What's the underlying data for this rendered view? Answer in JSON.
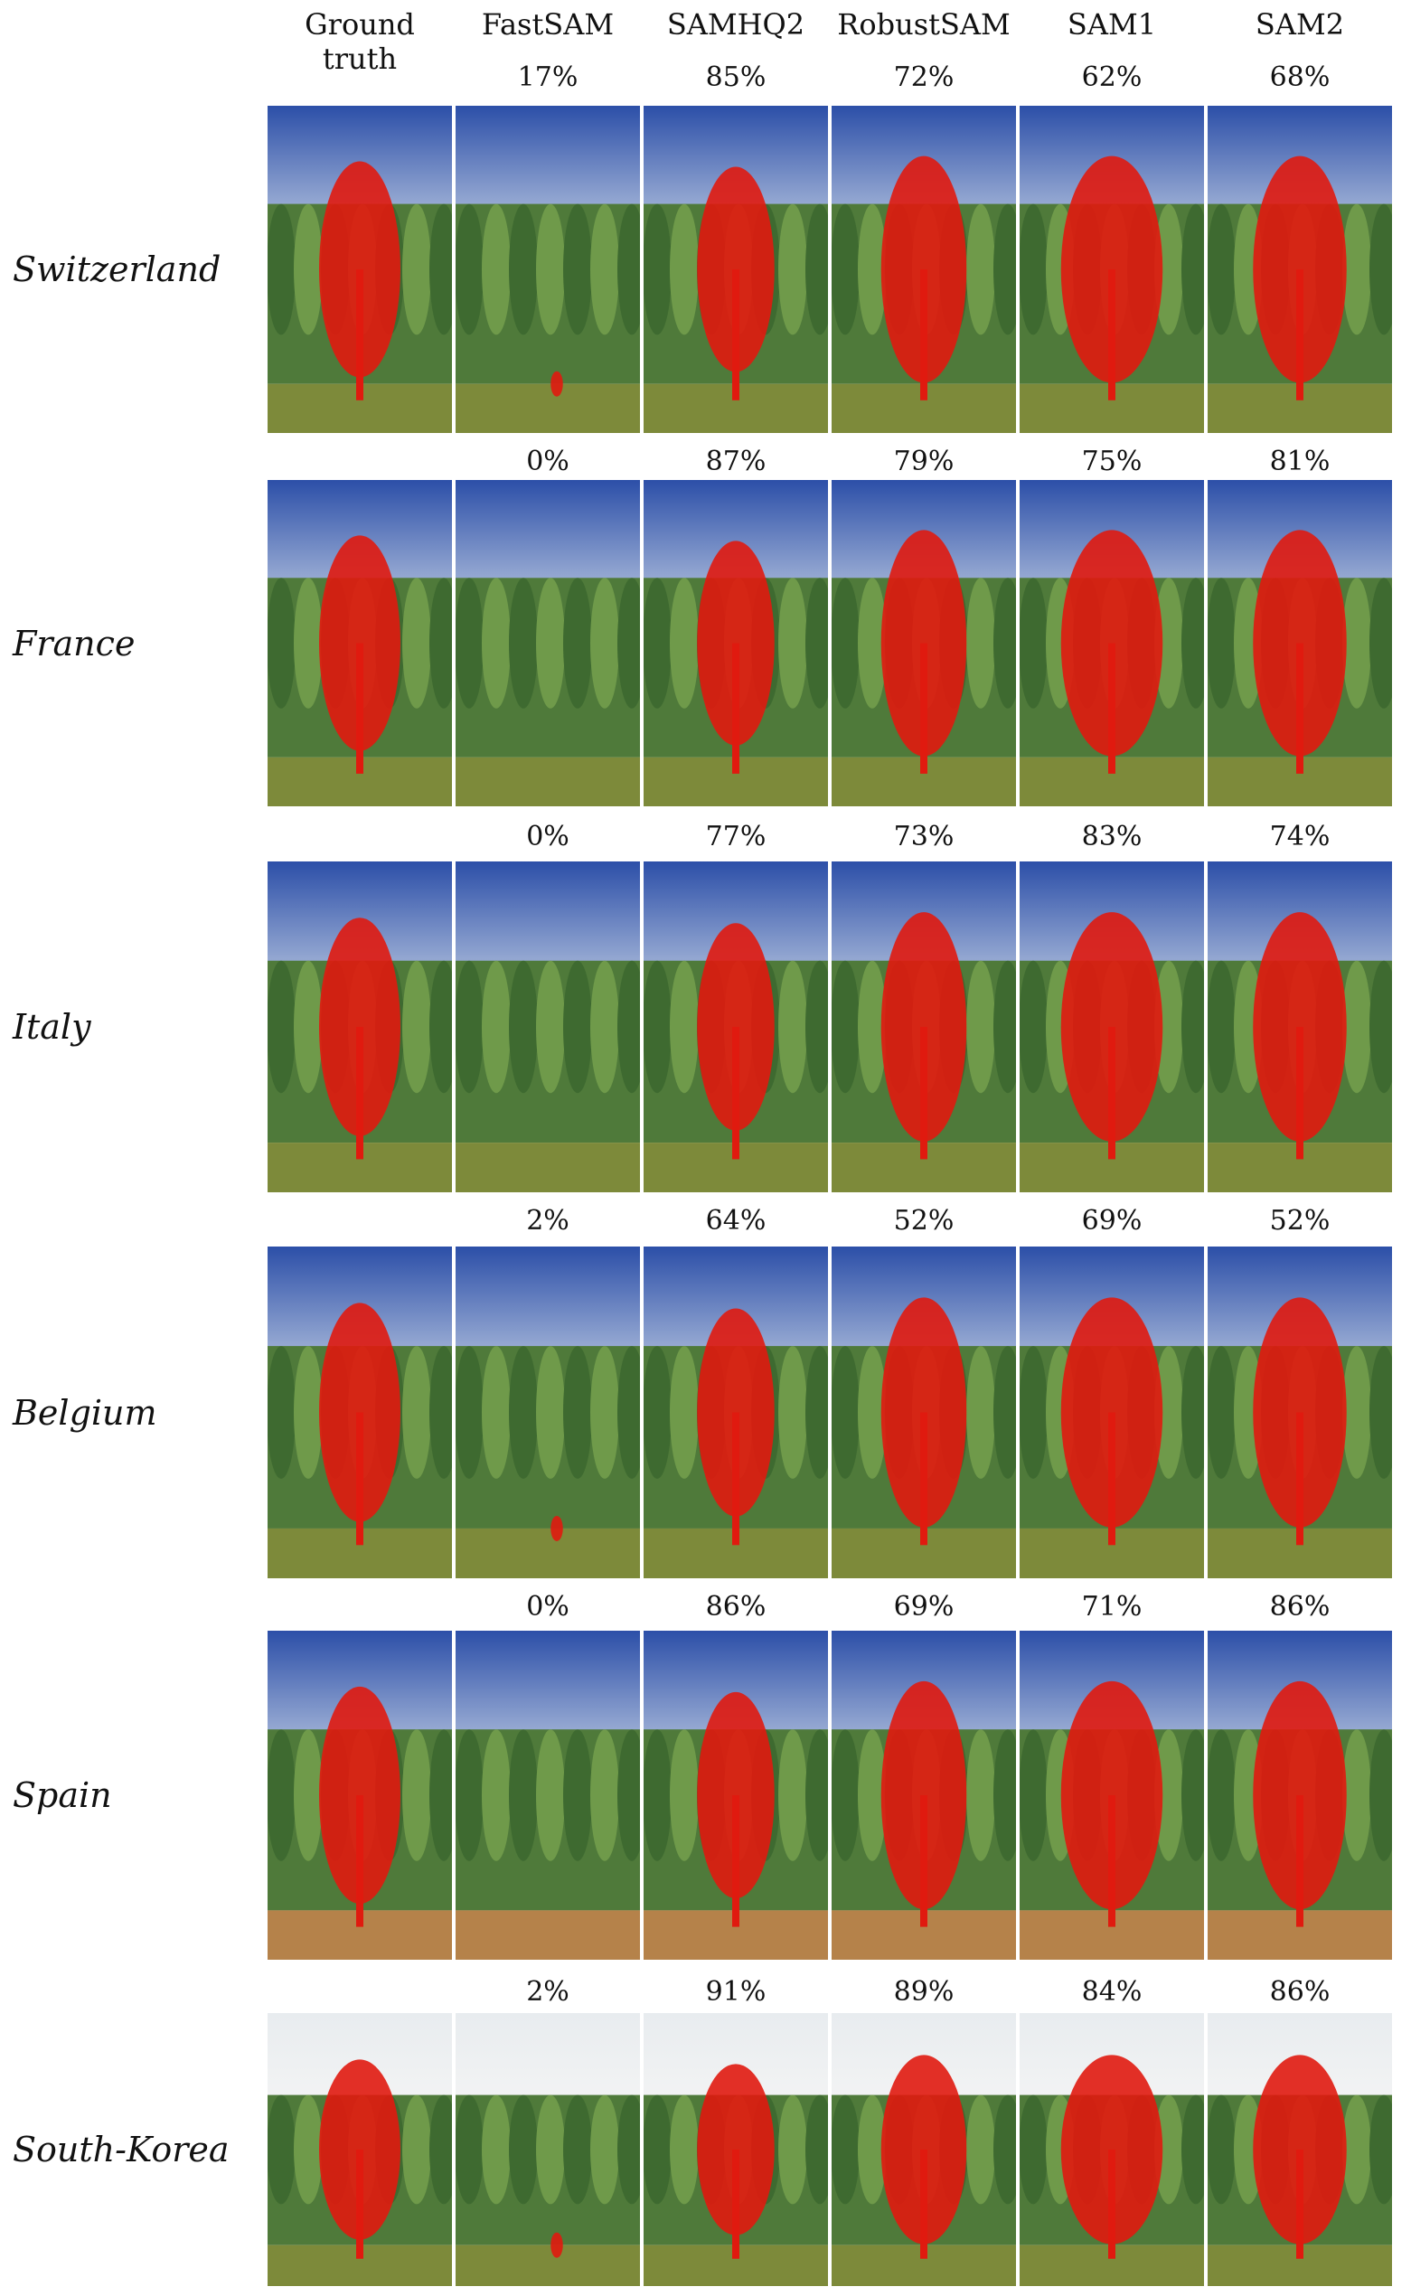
{
  "columns": [
    "Ground truth",
    "FastSAM",
    "SAMHQ2",
    "RobustSAM",
    "SAM1",
    "SAM2"
  ],
  "rows": [
    {
      "name": "Switzerland",
      "scores": [
        "17%",
        "85%",
        "72%",
        "62%",
        "68%"
      ]
    },
    {
      "name": "France",
      "scores": [
        "0%",
        "87%",
        "79%",
        "75%",
        "81%"
      ]
    },
    {
      "name": "Italy",
      "scores": [
        "0%",
        "77%",
        "73%",
        "83%",
        "74%"
      ]
    },
    {
      "name": "Belgium",
      "scores": [
        "2%",
        "64%",
        "52%",
        "69%",
        "52%"
      ]
    },
    {
      "name": "Spain",
      "scores": [
        "0%",
        "86%",
        "69%",
        "71%",
        "86%"
      ]
    },
    {
      "name": "South-Korea",
      "scores": [
        "2%",
        "91%",
        "89%",
        "84%",
        "86%"
      ]
    }
  ]
}
